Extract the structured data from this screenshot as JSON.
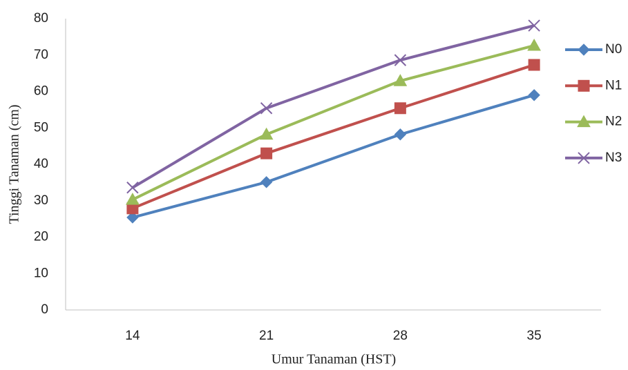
{
  "chart_data": {
    "type": "line",
    "x_label": "Umur Tanaman (HST)",
    "y_label": "Tinggi Tanaman (cm)",
    "categories": [
      "14",
      "21",
      "28",
      "35"
    ],
    "series": [
      {
        "name": "N0",
        "color": "#4f81bd",
        "marker": "diamond",
        "values": [
          25.4,
          35.1,
          48.2,
          59.0
        ]
      },
      {
        "name": "N1",
        "color": "#c0504d",
        "marker": "square",
        "values": [
          27.9,
          43.0,
          55.4,
          67.3
        ]
      },
      {
        "name": "N2",
        "color": "#9bbb59",
        "marker": "triangle",
        "values": [
          30.3,
          48.2,
          62.9,
          72.6
        ]
      },
      {
        "name": "N3",
        "color": "#8064a2",
        "marker": "cross",
        "values": [
          33.6,
          55.4,
          68.6,
          78.1
        ]
      }
    ],
    "ylim": [
      0,
      80
    ],
    "yticks": [
      0,
      10,
      20,
      30,
      40,
      50,
      60,
      70,
      80
    ],
    "grid": false,
    "legend": "right"
  }
}
